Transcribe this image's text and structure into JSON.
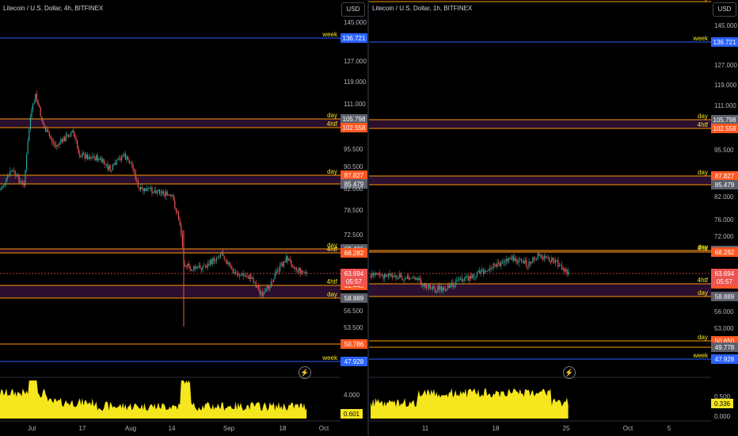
{
  "charts": [
    {
      "id": "left",
      "title": "Litecoin / U.S. Dollar, 4h, BITFINEX",
      "currency_button": "USD",
      "y_ticks": [
        "145.000",
        "127.000",
        "119.000",
        "111.000",
        "95.500",
        "90.500",
        "82.000",
        "78.500",
        "72.500",
        "56.500",
        "53.500"
      ],
      "x_ticks": [
        "Jul",
        "17",
        "Aug",
        "14",
        "Sep",
        "18",
        "Oct"
      ],
      "levels": [
        {
          "label": "week",
          "price": "136.721",
          "color": "#2962ff",
          "band": false
        },
        {
          "label": "day",
          "price": "105.798",
          "color": "#ff9800",
          "band": true
        },
        {
          "label": "4htf",
          "price": "102.558",
          "color": "#ff9800",
          "band": false
        },
        {
          "label": "day",
          "price": "87.827",
          "color": "#ff9800",
          "band": true
        },
        {
          "label": "",
          "price": "85.479",
          "color": "#ff9800",
          "band": false
        },
        {
          "label": "day",
          "price": "69.406",
          "color": "#ff9800",
          "band": true
        },
        {
          "label": "4htf",
          "price": "68.282",
          "color": "#ff9800",
          "band": false
        },
        {
          "label": "4htf",
          "price": "61.445",
          "color": "#ff9800",
          "band": true
        },
        {
          "label": "day",
          "price": "58.889",
          "color": "#ff9800",
          "band": false
        },
        {
          "label": "",
          "price": "50.786",
          "color": "#ff9800",
          "band": false
        },
        {
          "label": "week",
          "price": "47.928",
          "color": "#2962ff",
          "band": false
        }
      ],
      "current_price": "63.694",
      "countdown": "05:57",
      "volume_ticks": [
        "4.000"
      ],
      "volume_value": "0.601"
    },
    {
      "id": "right",
      "title": "Litecoin / U.S. Dollar, 1h, BITFINEX",
      "currency_button": "USD",
      "y_ticks": [
        "145.000",
        "127.000",
        "119.000",
        "111.000",
        "95.500",
        "82.000",
        "76.000",
        "72.000",
        "56.000",
        "53.000"
      ],
      "x_ticks": [
        "11",
        "18",
        "25",
        "Oct",
        "5"
      ],
      "levels": [
        {
          "label": "day",
          "price": "",
          "color": "#ff9800",
          "band": false
        },
        {
          "label": "week",
          "price": "136.721",
          "color": "#2962ff",
          "band": false
        },
        {
          "label": "day",
          "price": "105.798",
          "color": "#ff9800",
          "band": true
        },
        {
          "label": "4htf",
          "price": "102.558",
          "color": "#ff9800",
          "band": false
        },
        {
          "label": "day",
          "price": "87.827",
          "color": "#ff9800",
          "band": true
        },
        {
          "label": "",
          "price": "85.479",
          "color": "#ff9800",
          "band": false
        },
        {
          "label": "day",
          "price": "69.406",
          "color": "#ff9800",
          "band": true
        },
        {
          "label": "4htf",
          "price": "68.282",
          "color": "#ff9800",
          "band": false
        },
        {
          "label": "4htf",
          "price": "61.445",
          "color": "#ff9800",
          "band": true
        },
        {
          "label": "day",
          "price": "58.889",
          "color": "#ff9800",
          "band": false
        },
        {
          "label": "day",
          "price": "50.650",
          "color": "#ff9800",
          "band": false
        },
        {
          "label": "",
          "price": "49.778",
          "color": "#ff9800",
          "band": false
        },
        {
          "label": "week",
          "price": "47.928",
          "color": "#2962ff",
          "band": false
        }
      ],
      "current_price": "63.694",
      "countdown": "05:57",
      "volume_ticks": [
        "0.500",
        "0.000"
      ],
      "volume_value": "0.336"
    }
  ],
  "colors": {
    "up": "#26a69a",
    "down": "#ef5350",
    "volume": "#f5e61e",
    "band": "#2a0f2e",
    "week": "#2962ff",
    "level": "#ff9800",
    "price_tag_up": "#ff5722",
    "price_tag_gray": "#5d606b"
  }
}
